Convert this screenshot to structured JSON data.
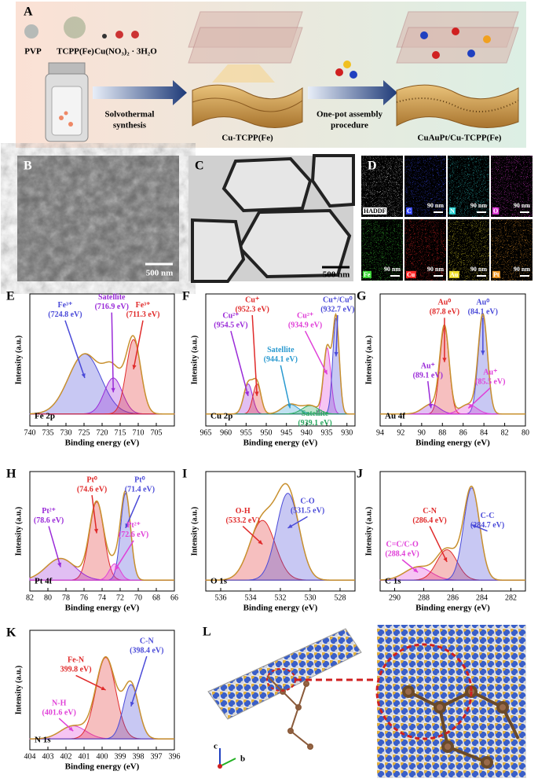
{
  "figure": {
    "A": {
      "letter": "A",
      "pvp": "PVP",
      "tcpp": "TCPP(Fe)",
      "cu_salt": "Cu(NO₃)₂ · 3H₂O",
      "step1": [
        "Solvothermal",
        "synthesis"
      ],
      "product1": "Cu-TCPP(Fe)",
      "step2": [
        "One-pot assembly",
        "procedure"
      ],
      "product2": "CuAuPt/Cu-TCPP(Fe)"
    },
    "B": {
      "letter": "B",
      "scale": "500 nm"
    },
    "C": {
      "letter": "C",
      "scale": "500 nm"
    },
    "D": {
      "letter": "D",
      "scale": "90 nm",
      "maps": [
        {
          "label": "HADDF",
          "color": "#d8d8d8"
        },
        {
          "label": "C",
          "color": "#3a4cff"
        },
        {
          "label": "N",
          "color": "#2fd6d6"
        },
        {
          "label": "O",
          "color": "#e03ad8"
        },
        {
          "label": "Fe",
          "color": "#3fdc3a"
        },
        {
          "label": "Cu",
          "color": "#ff2a2a"
        },
        {
          "label": "Au",
          "color": "#f0e02a"
        },
        {
          "label": "Pt",
          "color": "#f09a2a"
        }
      ]
    },
    "L": {
      "letter": "L",
      "axes": [
        "c",
        "b"
      ]
    }
  },
  "chart_data": [
    {
      "type": "xps",
      "panel": "E",
      "core_level": "Fe 2p",
      "xlabel": "Binding energy (eV)",
      "ylabel": "Intensity (a.u.)",
      "xlim": [
        740,
        700
      ],
      "xticks": [
        740,
        735,
        730,
        725,
        720,
        715,
        710,
        705
      ],
      "ylim": [
        -0.1,
        1
      ],
      "peaks": [
        {
          "name": "Fe³⁺",
          "center": 724.8,
          "center_label": "(724.8 eV)",
          "height": 0.5,
          "width": 4.5,
          "color": "#4a4ad8"
        },
        {
          "name": "Satellite",
          "center": 716.9,
          "center_label": "(716.9 eV)",
          "height": 0.3,
          "width": 2.5,
          "color": "#9a2ad8"
        },
        {
          "name": "Fe³⁺",
          "center": 711.3,
          "center_label": "(711.3 eV)",
          "height": 0.62,
          "width": 2.0,
          "color": "#e02a2a"
        }
      ]
    },
    {
      "type": "xps",
      "panel": "F",
      "core_level": "Cu 2p",
      "xlabel": "Binding energy (eV)",
      "ylabel": "Intensity (a.u.)",
      "xlim": [
        965,
        928
      ],
      "xticks": [
        965,
        960,
        955,
        950,
        945,
        940,
        935,
        930
      ],
      "ylim": [
        -0.1,
        1
      ],
      "peaks": [
        {
          "name": "Cu²⁺",
          "center": 954.5,
          "center_label": "(954.5 eV)",
          "height": 0.25,
          "width": 1.1,
          "color": "#9a2ad8"
        },
        {
          "name": "Cu⁺",
          "center": 952.3,
          "center_label": "(952.3 eV)",
          "height": 0.25,
          "width": 1.0,
          "color": "#e02a2a"
        },
        {
          "name": "Satellite",
          "center": 944.1,
          "center_label": "(944.1 eV)",
          "height": 0.08,
          "width": 2.0,
          "color": "#2a9ad0"
        },
        {
          "name": "Cu²⁺",
          "center": 934.9,
          "center_label": "(934.9 eV)",
          "height": 0.55,
          "width": 0.9,
          "color": "#e040d8"
        },
        {
          "name": "Cu⁺/Cu⁰",
          "center": 932.7,
          "center_label": "(932.7 eV)",
          "height": 0.8,
          "width": 0.8,
          "color": "#4a4ad8"
        },
        {
          "name": "Satellite",
          "center": 939.1,
          "center_label": "(939.1 eV)",
          "height": 0.07,
          "width": 2.0,
          "color": "#2aa860"
        }
      ]
    },
    {
      "type": "xps",
      "panel": "G",
      "core_level": "Au 4f",
      "xlabel": "Binding energy (eV)",
      "ylabel": "Intensity (a.u.)",
      "xlim": [
        94,
        80
      ],
      "xticks": [
        94,
        92,
        90,
        88,
        86,
        84,
        82,
        80
      ],
      "ylim": [
        -0.1,
        1
      ],
      "peaks": [
        {
          "name": "Au⁰",
          "center": 87.8,
          "center_label": "(87.8 eV)",
          "height": 0.72,
          "width": 0.45,
          "color": "#e02a2a"
        },
        {
          "name": "Au⁰",
          "center": 84.1,
          "center_label": "(84.1 eV)",
          "height": 0.82,
          "width": 0.45,
          "color": "#4a4ad8"
        },
        {
          "name": "Au⁺",
          "center": 89.1,
          "center_label": "(89.1 eV)",
          "height": 0.08,
          "width": 0.8,
          "color": "#9a2ad8"
        },
        {
          "name": "Au⁺",
          "center": 85.5,
          "center_label": "(85.5 eV)",
          "height": 0.08,
          "width": 0.8,
          "color": "#e040d8"
        }
      ]
    },
    {
      "type": "xps",
      "panel": "H",
      "core_level": "Pt 4f",
      "xlabel": "Binding energy (eV)",
      "ylabel": "Intensity (a.u.)",
      "xlim": [
        82,
        66
      ],
      "xticks": [
        82,
        80,
        78,
        76,
        74,
        72,
        70,
        68,
        66
      ],
      "ylim": [
        -0.1,
        1
      ],
      "peaks": [
        {
          "name": "Pt⁰",
          "center": 74.6,
          "center_label": "(74.6 eV)",
          "height": 0.72,
          "width": 0.8,
          "color": "#e02a2a"
        },
        {
          "name": "Pt⁰",
          "center": 71.4,
          "center_label": "(71.4 eV)",
          "height": 0.8,
          "width": 0.55,
          "color": "#4a4ad8"
        },
        {
          "name": "Pt²⁺",
          "center": 78.6,
          "center_label": "(78.6 eV)",
          "height": 0.2,
          "width": 1.6,
          "color": "#9a2ad8"
        },
        {
          "name": "Pt²⁺",
          "center": 72.6,
          "center_label": "(72.6 eV)",
          "height": 0.15,
          "width": 0.6,
          "color": "#e040d8"
        }
      ]
    },
    {
      "type": "xps",
      "panel": "I",
      "core_level": "O 1s",
      "xlabel": "Binding energy (eV)",
      "ylabel": "Intensity (a.u.)",
      "xlim": [
        537,
        527
      ],
      "xticks": [
        536,
        534,
        532,
        530,
        528
      ],
      "ylim": [
        -0.1,
        1
      ],
      "peaks": [
        {
          "name": "O-H",
          "center": 533.2,
          "center_label": "(533.2 eV)",
          "height": 0.55,
          "width": 0.85,
          "color": "#e02a2a"
        },
        {
          "name": "C-O",
          "center": 531.5,
          "center_label": "(531.5 eV)",
          "height": 0.8,
          "width": 0.75,
          "color": "#4a4ad8"
        }
      ]
    },
    {
      "type": "xps",
      "panel": "J",
      "core_level": "C 1s",
      "xlabel": "Binding energy (eV)",
      "ylabel": "Intensity (a.u.)",
      "xlim": [
        291,
        281
      ],
      "xticks": [
        290,
        288,
        286,
        284,
        282
      ],
      "ylim": [
        -0.1,
        1
      ],
      "peaks": [
        {
          "name": "C=C/C-O",
          "center": 288.4,
          "center_label": "(288.4 eV)",
          "height": 0.12,
          "width": 0.9,
          "color": "#e040d8"
        },
        {
          "name": "C-N",
          "center": 286.4,
          "center_label": "(286.4 eV)",
          "height": 0.28,
          "width": 0.7,
          "color": "#e02a2a"
        },
        {
          "name": "C-C",
          "center": 284.7,
          "center_label": "(284.7 eV)",
          "height": 0.85,
          "width": 0.55,
          "color": "#4a4ad8"
        }
      ]
    },
    {
      "type": "xps",
      "panel": "K",
      "core_level": "N 1s",
      "xlabel": "Binding energy (eV)",
      "ylabel": "Intensity (a.u.)",
      "xlim": [
        404,
        396
      ],
      "xticks": [
        404,
        403,
        402,
        401,
        400,
        399,
        398,
        397,
        396
      ],
      "ylim": [
        -0.1,
        1
      ],
      "peaks": [
        {
          "name": "N-H",
          "center": 401.6,
          "center_label": "(401.6 eV)",
          "height": 0.12,
          "width": 0.7,
          "color": "#e040d8"
        },
        {
          "name": "Fe-N",
          "center": 399.8,
          "center_label": "399.8 eV)",
          "height": 0.75,
          "width": 0.55,
          "color": "#e02a2a"
        },
        {
          "name": "C-N",
          "center": 398.4,
          "center_label": "(398.4 eV)",
          "height": 0.5,
          "width": 0.42,
          "color": "#4a4ad8"
        }
      ]
    }
  ]
}
